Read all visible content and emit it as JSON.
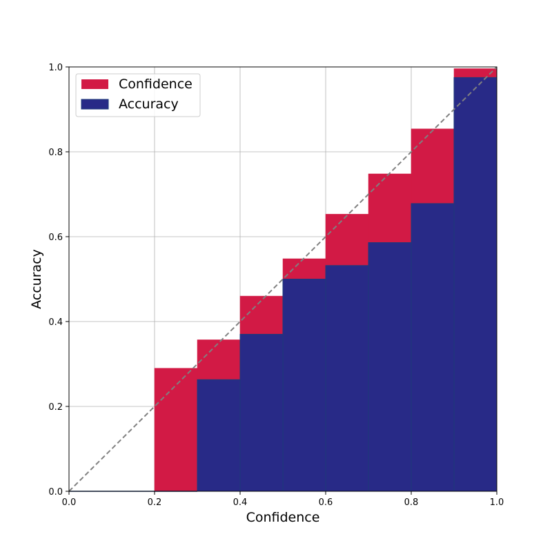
{
  "chart_data": {
    "type": "bar",
    "xlabel": "Confidence",
    "ylabel": "Accuracy",
    "xlim": [
      0.0,
      1.0
    ],
    "ylim": [
      0.0,
      1.0
    ],
    "xticks": [
      "0.0",
      "0.2",
      "0.4",
      "0.6",
      "0.8",
      "1.0"
    ],
    "yticks": [
      "0.0",
      "0.2",
      "0.4",
      "0.6",
      "0.8",
      "1.0"
    ],
    "grid": true,
    "legend_position": "top-left",
    "bin_edges": [
      0.0,
      0.1,
      0.2,
      0.3,
      0.4,
      0.5,
      0.6,
      0.7,
      0.8,
      0.9,
      1.0
    ],
    "series": [
      {
        "name": "Confidence",
        "color": "#d21a45",
        "values": [
          0.0,
          0.0,
          0.29,
          0.357,
          0.46,
          0.548,
          0.653,
          0.748,
          0.854,
          0.996
        ]
      },
      {
        "name": "Accuracy",
        "color": "#282a87",
        "edge_color": "#1c3a7a",
        "values": [
          0.0,
          0.0,
          0.0,
          0.263,
          0.37,
          0.5,
          0.532,
          0.586,
          0.678,
          0.975
        ]
      }
    ],
    "diagonal": {
      "style": "dashed",
      "color": "#808080"
    }
  }
}
